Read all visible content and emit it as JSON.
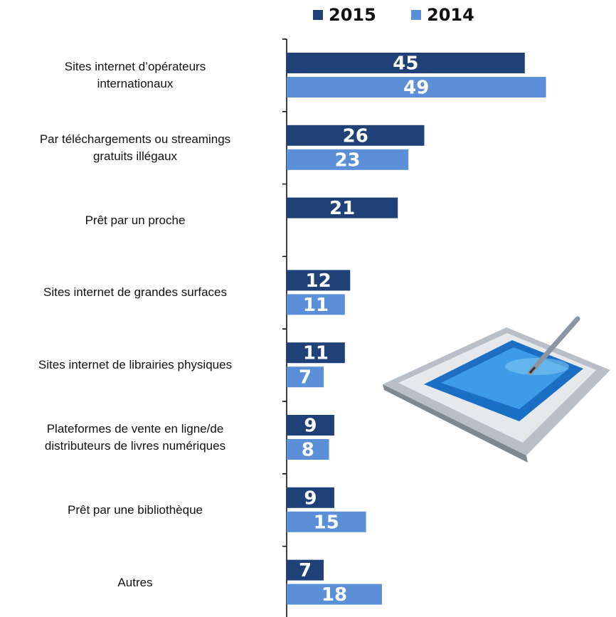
{
  "chart_data": {
    "type": "bar",
    "orientation": "horizontal",
    "categories": [
      "Sites internet d’opérateurs\ninternationaux",
      "Par téléchargements ou streamings\ngratuits illégaux",
      "Prêt par un proche",
      "Sites internet de grandes surfaces",
      "Sites internet de librairies physiques",
      "Plateformes de vente en ligne/de\ndistributeurs de livres numériques",
      "Prêt par une bibliothèque",
      "Autres"
    ],
    "series": [
      {
        "name": "2015",
        "color": "#1f4177",
        "values": [
          45,
          26,
          21,
          12,
          11,
          9,
          9,
          7
        ]
      },
      {
        "name": "2014",
        "color": "#5b8fd8",
        "values": [
          49,
          23,
          null,
          11,
          7,
          8,
          15,
          18
        ]
      }
    ],
    "xlim": [
      0,
      50
    ],
    "legend": "top"
  }
}
